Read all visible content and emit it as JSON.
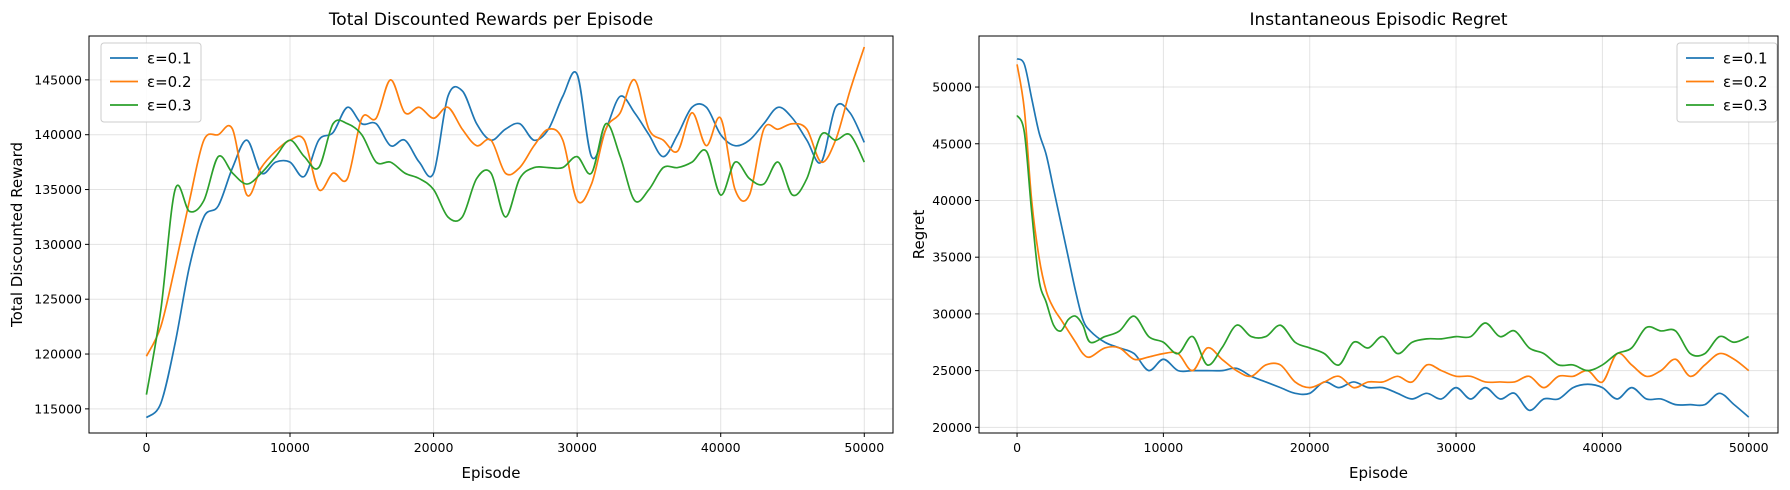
{
  "chart_data": [
    {
      "type": "line",
      "title": "Total Discounted Rewards per Episode",
      "xlabel": "Episode",
      "ylabel": "Total Discounted Reward",
      "xlim": [
        -4000,
        52000
      ],
      "ylim": [
        112800,
        149000
      ],
      "xticks": [
        0,
        10000,
        20000,
        30000,
        40000,
        50000
      ],
      "yticks": [
        115000,
        120000,
        125000,
        130000,
        135000,
        140000,
        145000
      ],
      "grid": true,
      "legend": "upper-left",
      "series": [
        {
          "name": "ε=0.1",
          "color": "#1f77b4",
          "x": [
            0,
            1000,
            2000,
            3000,
            4000,
            5000,
            6000,
            7000,
            8000,
            9000,
            10000,
            11000,
            12000,
            13000,
            14000,
            15000,
            16000,
            17000,
            18000,
            19000,
            20000,
            21000,
            22000,
            23000,
            24000,
            25000,
            26000,
            27000,
            28000,
            29000,
            30000,
            31000,
            32000,
            33000,
            34000,
            35000,
            36000,
            37000,
            38000,
            39000,
            40000,
            41000,
            42000,
            43000,
            44000,
            45000,
            46000,
            47000,
            48000,
            49000,
            50000
          ],
          "y": [
            114200,
            115500,
            121000,
            128000,
            132500,
            133500,
            137000,
            139500,
            136500,
            137500,
            137500,
            136200,
            139500,
            140200,
            142500,
            141000,
            141000,
            139000,
            139500,
            137500,
            136500,
            143500,
            144000,
            141000,
            139500,
            140500,
            141000,
            139500,
            140500,
            143500,
            145500,
            138000,
            140500,
            143500,
            142000,
            140000,
            138000,
            140000,
            142500,
            142500,
            140000,
            139000,
            139500,
            141000,
            142500,
            141500,
            139500,
            137500,
            142500,
            142000,
            139300
          ]
        },
        {
          "name": "ε=0.2",
          "color": "#ff7f0e",
          "x": [
            0,
            1000,
            2000,
            3000,
            4000,
            5000,
            6000,
            7000,
            8000,
            9000,
            10000,
            11000,
            12000,
            13000,
            14000,
            15000,
            16000,
            17000,
            18000,
            19000,
            20000,
            21000,
            22000,
            23000,
            24000,
            25000,
            26000,
            27000,
            28000,
            29000,
            30000,
            31000,
            32000,
            33000,
            34000,
            35000,
            36000,
            37000,
            38000,
            39000,
            40000,
            41000,
            42000,
            43000,
            44000,
            45000,
            46000,
            47000,
            48000,
            49000,
            50000
          ],
          "y": [
            119800,
            122500,
            128000,
            134000,
            139500,
            140000,
            140500,
            134500,
            137000,
            138500,
            139500,
            139500,
            135000,
            136500,
            136000,
            141500,
            141500,
            145000,
            142000,
            142500,
            141500,
            142500,
            140500,
            139000,
            139500,
            136500,
            137000,
            139000,
            140500,
            139500,
            134000,
            135500,
            140500,
            142000,
            145000,
            140500,
            139500,
            138500,
            142000,
            139000,
            141500,
            135000,
            134500,
            140500,
            140500,
            141000,
            140500,
            137500,
            139500,
            144000,
            148000
          ]
        },
        {
          "name": "ε=0.3",
          "color": "#2ca02c",
          "x": [
            0,
            1000,
            2000,
            3000,
            4000,
            5000,
            6000,
            7000,
            8000,
            9000,
            10000,
            11000,
            12000,
            13000,
            14000,
            15000,
            16000,
            17000,
            18000,
            19000,
            20000,
            21000,
            22000,
            23000,
            24000,
            25000,
            26000,
            27000,
            28000,
            29000,
            30000,
            31000,
            32000,
            33000,
            34000,
            35000,
            36000,
            37000,
            38000,
            39000,
            40000,
            41000,
            42000,
            43000,
            44000,
            45000,
            46000,
            47000,
            48000,
            49000,
            50000
          ],
          "y": [
            116300,
            124000,
            135000,
            133000,
            134000,
            138000,
            136500,
            135500,
            136500,
            138000,
            139500,
            138000,
            137000,
            141000,
            141000,
            140000,
            137500,
            137500,
            136500,
            136000,
            135000,
            132500,
            132500,
            136000,
            136500,
            132500,
            136000,
            137000,
            137000,
            137000,
            138000,
            136500,
            141000,
            138000,
            134000,
            135000,
            137000,
            137000,
            137500,
            138500,
            134500,
            137500,
            136000,
            135500,
            137500,
            134500,
            136000,
            140000,
            139500,
            140000,
            137500
          ]
        }
      ]
    },
    {
      "type": "line",
      "title": "Instantaneous Episodic Regret",
      "xlabel": "Episode",
      "ylabel": "Regret",
      "xlim": [
        -2600,
        52000
      ],
      "ylim": [
        19500,
        54500
      ],
      "xticks": [
        0,
        10000,
        20000,
        30000,
        40000,
        50000
      ],
      "yticks": [
        20000,
        25000,
        30000,
        35000,
        40000,
        45000,
        50000
      ],
      "grid": true,
      "legend": "upper-right",
      "series": [
        {
          "name": "ε=0.1",
          "color": "#1f77b4",
          "x": [
            0,
            500,
            1000,
            1500,
            2000,
            2500,
            3000,
            3500,
            4000,
            4500,
            5000,
            6000,
            7000,
            8000,
            9000,
            10000,
            11000,
            12000,
            13000,
            14000,
            15000,
            16000,
            17000,
            18000,
            19000,
            20000,
            21000,
            22000,
            23000,
            24000,
            25000,
            26000,
            27000,
            28000,
            29000,
            30000,
            31000,
            32000,
            33000,
            34000,
            35000,
            36000,
            37000,
            38000,
            39000,
            40000,
            41000,
            42000,
            43000,
            44000,
            45000,
            46000,
            47000,
            48000,
            49000,
            50000
          ],
          "y": [
            52500,
            52000,
            49000,
            46000,
            44000,
            41000,
            38000,
            35000,
            32000,
            29500,
            28500,
            27500,
            27000,
            26500,
            25000,
            26000,
            25000,
            25000,
            25000,
            25000,
            25200,
            24500,
            24000,
            23500,
            23000,
            23000,
            24000,
            23500,
            24000,
            23500,
            23500,
            23000,
            22500,
            23000,
            22500,
            23500,
            22500,
            23500,
            22500,
            23000,
            21500,
            22500,
            22500,
            23500,
            23800,
            23500,
            22500,
            23500,
            22500,
            22500,
            22000,
            22000,
            22000,
            23000,
            22000,
            20900
          ]
        },
        {
          "name": "ε=0.2",
          "color": "#ff7f0e",
          "x": [
            0,
            500,
            1000,
            1500,
            2000,
            2500,
            3000,
            3500,
            4000,
            4500,
            5000,
            6000,
            7000,
            8000,
            9000,
            10000,
            11000,
            12000,
            13000,
            14000,
            15000,
            16000,
            17000,
            18000,
            19000,
            20000,
            21000,
            22000,
            23000,
            24000,
            25000,
            26000,
            27000,
            28000,
            29000,
            30000,
            31000,
            32000,
            33000,
            34000,
            35000,
            36000,
            37000,
            38000,
            39000,
            40000,
            41000,
            42000,
            43000,
            44000,
            45000,
            46000,
            47000,
            48000,
            49000,
            50000
          ],
          "y": [
            52000,
            48000,
            40000,
            35000,
            32000,
            30500,
            29500,
            28500,
            27500,
            26500,
            26200,
            27000,
            27000,
            26000,
            26200,
            26500,
            26500,
            25000,
            27000,
            26000,
            25000,
            24500,
            25500,
            25500,
            24000,
            23500,
            24000,
            24500,
            23500,
            24000,
            24000,
            24500,
            24000,
            25500,
            25000,
            24500,
            24500,
            24000,
            24000,
            24000,
            24500,
            23500,
            24500,
            24500,
            25000,
            24000,
            26500,
            25500,
            24500,
            25000,
            26000,
            24500,
            25500,
            26500,
            26000,
            25000
          ]
        },
        {
          "name": "ε=0.3",
          "color": "#2ca02c",
          "x": [
            0,
            500,
            1000,
            1500,
            2000,
            2500,
            3000,
            3500,
            4000,
            4500,
            5000,
            6000,
            7000,
            8000,
            9000,
            10000,
            11000,
            12000,
            13000,
            14000,
            15000,
            16000,
            17000,
            18000,
            19000,
            20000,
            21000,
            22000,
            23000,
            24000,
            25000,
            26000,
            27000,
            28000,
            29000,
            30000,
            31000,
            32000,
            33000,
            34000,
            35000,
            36000,
            37000,
            38000,
            39000,
            40000,
            41000,
            42000,
            43000,
            44000,
            45000,
            46000,
            47000,
            48000,
            49000,
            50000
          ],
          "y": [
            47500,
            46000,
            39000,
            33000,
            31000,
            29000,
            28500,
            29500,
            29800,
            29000,
            27500,
            28000,
            28500,
            29800,
            28000,
            27500,
            26500,
            28000,
            25500,
            27000,
            29000,
            28000,
            28000,
            29000,
            27500,
            27000,
            26500,
            25500,
            27500,
            27000,
            28000,
            26500,
            27500,
            27800,
            27800,
            28000,
            28000,
            29200,
            28000,
            28500,
            27000,
            26500,
            25500,
            25500,
            25000,
            25500,
            26500,
            27000,
            28800,
            28500,
            28500,
            26500,
            26500,
            28000,
            27500,
            28000
          ]
        }
      ]
    }
  ]
}
